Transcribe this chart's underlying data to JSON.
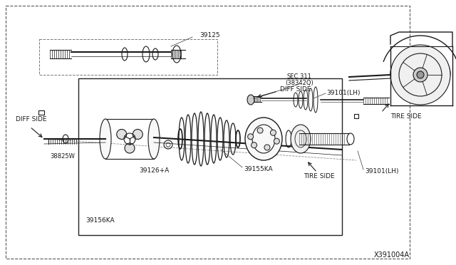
{
  "bg_color": "#ffffff",
  "diagram_id": "X391004A",
  "line_color": "#1a1a1a",
  "text_color": "#1a1a1a",
  "fig_width": 6.4,
  "fig_height": 3.72,
  "dpi": 100,
  "labels": {
    "sec311_1": "SEC.311",
    "sec311_2": "(38342Q)",
    "diff_side_top": "DIFF SIDE",
    "diff_side_left": "DIFF SIDE",
    "tire_side_right": "TIRE SIDE",
    "tire_side_bottom": "TIRE SIDE",
    "part_39125": "39125",
    "part_39101_lh_top": "39101(LH)",
    "part_39101_lh_bottom": "39101(LH)",
    "part_39155ka": "39155KA",
    "part_39126a": "39126+A",
    "part_38825w": "38825W",
    "part_39156ka": "39156KA"
  }
}
